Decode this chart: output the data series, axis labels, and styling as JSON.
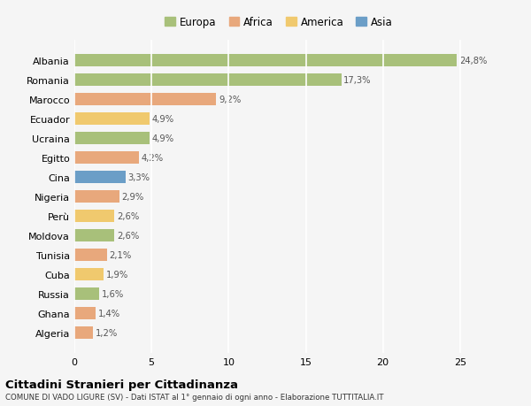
{
  "countries": [
    "Albania",
    "Romania",
    "Marocco",
    "Ecuador",
    "Ucraina",
    "Egitto",
    "Cina",
    "Nigeria",
    "Perù",
    "Moldova",
    "Tunisia",
    "Cuba",
    "Russia",
    "Ghana",
    "Algeria"
  ],
  "values": [
    24.8,
    17.3,
    9.2,
    4.9,
    4.9,
    4.2,
    3.3,
    2.9,
    2.6,
    2.6,
    2.1,
    1.9,
    1.6,
    1.4,
    1.2
  ],
  "labels": [
    "24,8%",
    "17,3%",
    "9,2%",
    "4,9%",
    "4,9%",
    "4,2%",
    "3,3%",
    "2,9%",
    "2,6%",
    "2,6%",
    "2,1%",
    "1,9%",
    "1,6%",
    "1,4%",
    "1,2%"
  ],
  "colors": [
    "#a8c07a",
    "#a8c07a",
    "#e8a87c",
    "#f0c96e",
    "#a8c07a",
    "#e8a87c",
    "#6b9ec7",
    "#e8a87c",
    "#f0c96e",
    "#a8c07a",
    "#e8a87c",
    "#f0c96e",
    "#a8c07a",
    "#e8a87c",
    "#e8a87c"
  ],
  "continents": [
    "Europa",
    "Europa",
    "Africa",
    "America",
    "Europa",
    "Africa",
    "Asia",
    "Africa",
    "America",
    "Europa",
    "Africa",
    "America",
    "Europa",
    "Africa",
    "Africa"
  ],
  "legend_labels": [
    "Europa",
    "Africa",
    "America",
    "Asia"
  ],
  "legend_colors": [
    "#a8c07a",
    "#e8a87c",
    "#f0c96e",
    "#6b9ec7"
  ],
  "title": "Cittadini Stranieri per Cittadinanza",
  "subtitle": "COMUNE DI VADO LIGURE (SV) - Dati ISTAT al 1° gennaio di ogni anno - Elaborazione TUTTITALIA.IT",
  "xlim": [
    0,
    26.5
  ],
  "xticks": [
    0,
    5,
    10,
    15,
    20,
    25
  ],
  "background_color": "#f5f5f5",
  "grid_color": "#ffffff",
  "label_color": "#555555",
  "bar_height": 0.65
}
